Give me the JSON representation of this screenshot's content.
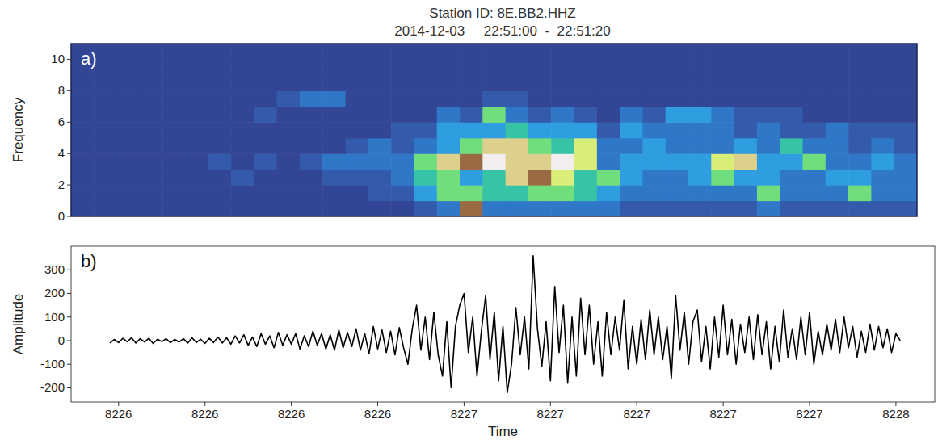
{
  "chart_data": [
    {
      "type": "heatmap",
      "title": "Station ID: 8E.BB2.HHZ",
      "subtitle": "2014-12-03     22:51:00  -  22:51:20",
      "panel_label": "a)",
      "y_label": "Frequency",
      "xlim": [
        8225.69,
        8227.65
      ],
      "ylim": [
        0,
        11
      ],
      "yticks": [
        0,
        2,
        4,
        6,
        8,
        10
      ],
      "tick_labels": "y",
      "zlim": [
        0,
        10
      ],
      "cells": [
        [
          1,
          1,
          1,
          1,
          1,
          1,
          1,
          1,
          1,
          1,
          1
        ],
        [
          1,
          1,
          1,
          1,
          1,
          1,
          1,
          1,
          1,
          1,
          1
        ],
        [
          1,
          1,
          1,
          1,
          1,
          1,
          1,
          1,
          1,
          1,
          1
        ],
        [
          1,
          1,
          1,
          1,
          1,
          1,
          1,
          1,
          1,
          1,
          1
        ],
        [
          1,
          1,
          1,
          1,
          1,
          1,
          1,
          1,
          1,
          1,
          1
        ],
        [
          1,
          1,
          1,
          1,
          1,
          1,
          1,
          1,
          1,
          1,
          1
        ],
        [
          1,
          1,
          1,
          2,
          1,
          1,
          1,
          1,
          1,
          1,
          1
        ],
        [
          1,
          1,
          2,
          1,
          1,
          1,
          1,
          1,
          1,
          1,
          1
        ],
        [
          1,
          1,
          1,
          2,
          1,
          1,
          2,
          1,
          1,
          1,
          1
        ],
        [
          1,
          1,
          1,
          1,
          1,
          1,
          1,
          2,
          1,
          1,
          1
        ],
        [
          1,
          1,
          1,
          2,
          1,
          1,
          1,
          3,
          1,
          1,
          1
        ],
        [
          1,
          1,
          2,
          3,
          1,
          1,
          1,
          3,
          1,
          1,
          1
        ],
        [
          1,
          1,
          2,
          3,
          2,
          1,
          1,
          1,
          1,
          1,
          1
        ],
        [
          1,
          2,
          2,
          3,
          3,
          1,
          1,
          1,
          1,
          1,
          1
        ],
        [
          1,
          2,
          3,
          3,
          2,
          2,
          1,
          1,
          1,
          1,
          1
        ],
        [
          2,
          4,
          5,
          6,
          3,
          2,
          1,
          1,
          1,
          1,
          1
        ],
        [
          3,
          6,
          6,
          8,
          4,
          4,
          3,
          1,
          1,
          1,
          1
        ],
        [
          9,
          6,
          4,
          9,
          6,
          4,
          2,
          1,
          1,
          1,
          1
        ],
        [
          3,
          5,
          5,
          10,
          8,
          4,
          6,
          2,
          1,
          1,
          1
        ],
        [
          3,
          5,
          8,
          8,
          8,
          5,
          3,
          2,
          1,
          1,
          1
        ],
        [
          3,
          6,
          9,
          8,
          6,
          4,
          2,
          1,
          1,
          1,
          1
        ],
        [
          3,
          6,
          7,
          10,
          5,
          4,
          3,
          1,
          1,
          1,
          1
        ],
        [
          3,
          5,
          5,
          7,
          7,
          4,
          2,
          1,
          1,
          1,
          1
        ],
        [
          3,
          4,
          6,
          3,
          3,
          2,
          1,
          1,
          1,
          1,
          1
        ],
        [
          2,
          3,
          4,
          4,
          3,
          4,
          3,
          1,
          1,
          1,
          1
        ],
        [
          2,
          3,
          3,
          4,
          4,
          3,
          2,
          1,
          1,
          1,
          1
        ],
        [
          2,
          3,
          3,
          4,
          3,
          3,
          4,
          1,
          1,
          1,
          1
        ],
        [
          2,
          3,
          4,
          4,
          3,
          3,
          4,
          1,
          1,
          1,
          1
        ],
        [
          2,
          3,
          6,
          7,
          3,
          3,
          3,
          1,
          1,
          1,
          1
        ],
        [
          2,
          3,
          4,
          8,
          4,
          2,
          2,
          1,
          1,
          1,
          1
        ],
        [
          3,
          6,
          4,
          4,
          3,
          3,
          2,
          1,
          1,
          1,
          1
        ],
        [
          2,
          3,
          3,
          4,
          5,
          2,
          2,
          1,
          1,
          1,
          1
        ],
        [
          2,
          3,
          3,
          6,
          3,
          2,
          1,
          1,
          1,
          1,
          1
        ],
        [
          2,
          3,
          4,
          3,
          3,
          3,
          1,
          1,
          1,
          1,
          1
        ],
        [
          2,
          6,
          4,
          3,
          2,
          2,
          1,
          1,
          1,
          1,
          1
        ],
        [
          2,
          3,
          3,
          4,
          3,
          2,
          1,
          1,
          1,
          1,
          1
        ],
        [
          2,
          3,
          3,
          3,
          2,
          2,
          1,
          1,
          1,
          1,
          1
        ]
      ]
    },
    {
      "type": "line",
      "panel_label": "b)",
      "x_label": "Time",
      "y_label": "Amplitude",
      "color": "#000000",
      "xlim": [
        8225.69,
        8227.69
      ],
      "ylim": [
        -260,
        400
      ],
      "yticks": [
        -200,
        -100,
        0,
        100,
        200,
        300
      ],
      "xticks": [
        {
          "value": 8225.8,
          "label": "8226"
        },
        {
          "value": 8226.0,
          "label": "8226"
        },
        {
          "value": 8226.2,
          "label": "8226"
        },
        {
          "value": 8226.4,
          "label": "8226"
        },
        {
          "value": 8226.6,
          "label": "8227"
        },
        {
          "value": 8226.8,
          "label": "8227"
        },
        {
          "value": 8227.0,
          "label": "8227"
        },
        {
          "value": 8227.2,
          "label": "8227"
        },
        {
          "value": 8227.4,
          "label": "8227"
        },
        {
          "value": 8227.6,
          "label": "8228"
        }
      ],
      "x": [
        8225.78,
        8225.79,
        8225.8,
        8225.81,
        8225.82,
        8225.83,
        8225.84,
        8225.85,
        8225.86,
        8225.87,
        8225.88,
        8225.89,
        8225.9,
        8225.91,
        8225.92,
        8225.93,
        8225.94,
        8225.95,
        8225.96,
        8225.97,
        8225.98,
        8225.99,
        8226.0,
        8226.01,
        8226.02,
        8226.03,
        8226.04,
        8226.05,
        8226.06,
        8226.07,
        8226.08,
        8226.09,
        8226.1,
        8226.11,
        8226.12,
        8226.13,
        8226.14,
        8226.15,
        8226.16,
        8226.17,
        8226.18,
        8226.19,
        8226.2,
        8226.21,
        8226.22,
        8226.23,
        8226.24,
        8226.25,
        8226.26,
        8226.27,
        8226.28,
        8226.29,
        8226.3,
        8226.31,
        8226.32,
        8226.33,
        8226.34,
        8226.35,
        8226.36,
        8226.37,
        8226.38,
        8226.39,
        8226.4,
        8226.41,
        8226.42,
        8226.43,
        8226.44,
        8226.45,
        8226.46,
        8226.47,
        8226.48,
        8226.49,
        8226.5,
        8226.51,
        8226.52,
        8226.53,
        8226.54,
        8226.55,
        8226.56,
        8226.57,
        8226.58,
        8226.59,
        8226.6,
        8226.61,
        8226.62,
        8226.63,
        8226.64,
        8226.65,
        8226.66,
        8226.67,
        8226.68,
        8226.69,
        8226.7,
        8226.71,
        8226.72,
        8226.73,
        8226.74,
        8226.75,
        8226.76,
        8226.77,
        8226.78,
        8226.79,
        8226.8,
        8226.81,
        8226.82,
        8226.83,
        8226.84,
        8226.85,
        8226.86,
        8226.87,
        8226.88,
        8226.89,
        8226.9,
        8226.91,
        8226.92,
        8226.93,
        8226.94,
        8226.95,
        8226.96,
        8226.97,
        8226.98,
        8226.99,
        8227.0,
        8227.01,
        8227.02,
        8227.03,
        8227.04,
        8227.05,
        8227.06,
        8227.07,
        8227.08,
        8227.09,
        8227.1,
        8227.11,
        8227.12,
        8227.13,
        8227.14,
        8227.15,
        8227.16,
        8227.17,
        8227.18,
        8227.19,
        8227.2,
        8227.21,
        8227.22,
        8227.23,
        8227.24,
        8227.25,
        8227.26,
        8227.27,
        8227.28,
        8227.29,
        8227.3,
        8227.31,
        8227.32,
        8227.33,
        8227.34,
        8227.35,
        8227.36,
        8227.37,
        8227.38,
        8227.39,
        8227.4,
        8227.41,
        8227.42,
        8227.43,
        8227.44,
        8227.45,
        8227.46,
        8227.47,
        8227.48,
        8227.49,
        8227.5,
        8227.51,
        8227.52,
        8227.53,
        8227.54,
        8227.55,
        8227.56,
        8227.57,
        8227.58,
        8227.59,
        8227.6,
        8227.61
      ],
      "values": [
        -10,
        5,
        -8,
        10,
        -5,
        12,
        -10,
        8,
        -6,
        10,
        -12,
        6,
        -4,
        8,
        -8,
        5,
        -6,
        8,
        -10,
        12,
        -8,
        6,
        -12,
        10,
        -8,
        15,
        -10,
        12,
        -15,
        20,
        -10,
        25,
        -20,
        15,
        -25,
        30,
        -15,
        20,
        -30,
        35,
        -20,
        25,
        -15,
        30,
        -35,
        20,
        -25,
        40,
        -20,
        30,
        -35,
        25,
        -40,
        45,
        -30,
        35,
        -25,
        50,
        -40,
        30,
        -55,
        60,
        -35,
        45,
        -50,
        40,
        -60,
        55,
        -30,
        -100,
        50,
        150,
        -40,
        100,
        -80,
        120,
        -60,
        -150,
        80,
        -200,
        60,
        150,
        200,
        -50,
        100,
        -150,
        40,
        190,
        -80,
        120,
        -170,
        60,
        -220,
        -100,
        140,
        -60,
        100,
        -120,
        360,
        50,
        -110,
        80,
        -170,
        230,
        -50,
        150,
        -180,
        100,
        -150,
        180,
        -60,
        150,
        -100,
        80,
        -150,
        120,
        -60,
        100,
        -40,
        170,
        -120,
        60,
        -100,
        90,
        -80,
        130,
        -60,
        100,
        -80,
        60,
        -160,
        190,
        -40,
        120,
        -100,
        80,
        130,
        -90,
        60,
        -120,
        100,
        -70,
        150,
        -60,
        90,
        -100,
        70,
        -50,
        100,
        -80,
        110,
        -60,
        80,
        -120,
        60,
        -90,
        130,
        -70,
        50,
        -80,
        100,
        -60,
        120,
        -100,
        40,
        -60,
        70,
        -40,
        90,
        -50,
        100,
        -30,
        60,
        -70,
        40,
        -50,
        70,
        -40,
        60,
        -30,
        50,
        -50,
        30,
        0
      ]
    }
  ]
}
